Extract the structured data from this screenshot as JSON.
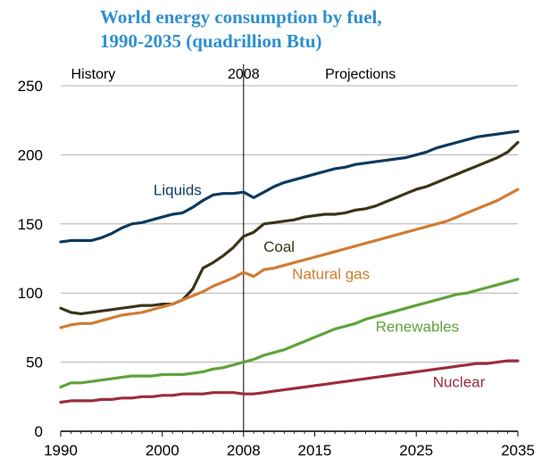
{
  "chart_data": {
    "type": "line",
    "title": "World energy consumption by fuel,",
    "subtitle": "1990-2035 (quadrillion Btu)",
    "xlabel": "",
    "ylabel": "",
    "xlim": [
      1990,
      2035
    ],
    "ylim": [
      0,
      250
    ],
    "x_ticks": [
      1990,
      2000,
      2008,
      2015,
      2025,
      2035
    ],
    "y_ticks": [
      0,
      50,
      100,
      150,
      200,
      250
    ],
    "divider_year": 2008,
    "annotations": {
      "history": "History",
      "divider": "2008",
      "projections": "Projections"
    },
    "x": [
      1990,
      1991,
      1992,
      1993,
      1994,
      1995,
      1996,
      1997,
      1998,
      1999,
      2000,
      2001,
      2002,
      2003,
      2004,
      2005,
      2006,
      2007,
      2008,
      2009,
      2010,
      2011,
      2012,
      2013,
      2014,
      2015,
      2016,
      2017,
      2018,
      2019,
      2020,
      2021,
      2022,
      2023,
      2024,
      2025,
      2026,
      2027,
      2028,
      2029,
      2030,
      2031,
      2032,
      2033,
      2034,
      2035
    ],
    "series": [
      {
        "name": "Liquids",
        "color": "#0c3a5e",
        "values": [
          137,
          138,
          138,
          138,
          140,
          143,
          147,
          150,
          151,
          153,
          155,
          157,
          158,
          162,
          167,
          171,
          172,
          172,
          173,
          169,
          173,
          177,
          180,
          182,
          184,
          186,
          188,
          190,
          191,
          193,
          194,
          195,
          196,
          197,
          198,
          200,
          202,
          205,
          207,
          209,
          211,
          213,
          214,
          215,
          216,
          217
        ]
      },
      {
        "name": "Coal",
        "color": "#3d3418",
        "values": [
          89,
          86,
          85,
          86,
          87,
          88,
          89,
          90,
          91,
          91,
          92,
          92,
          95,
          103,
          118,
          122,
          127,
          133,
          141,
          144,
          150,
          151,
          152,
          153,
          155,
          156,
          157,
          157,
          158,
          160,
          161,
          163,
          166,
          169,
          172,
          175,
          177,
          180,
          183,
          186,
          189,
          192,
          195,
          198,
          202,
          209
        ]
      },
      {
        "name": "Natural gas",
        "color": "#d07c32",
        "values": [
          75,
          77,
          78,
          78,
          80,
          82,
          84,
          85,
          86,
          88,
          90,
          92,
          95,
          98,
          101,
          105,
          108,
          111,
          115,
          112,
          117,
          118,
          120,
          122,
          124,
          126,
          128,
          130,
          132,
          134,
          136,
          138,
          140,
          142,
          144,
          146,
          148,
          150,
          152,
          155,
          158,
          161,
          164,
          167,
          171,
          175
        ]
      },
      {
        "name": "Renewables",
        "color": "#5fa33b",
        "values": [
          32,
          35,
          35,
          36,
          37,
          38,
          39,
          40,
          40,
          40,
          41,
          41,
          41,
          42,
          43,
          45,
          46,
          48,
          50,
          52,
          55,
          57,
          59,
          62,
          65,
          68,
          71,
          74,
          76,
          78,
          81,
          83,
          85,
          87,
          89,
          91,
          93,
          95,
          97,
          99,
          100,
          102,
          104,
          106,
          108,
          110
        ]
      },
      {
        "name": "Nuclear",
        "color": "#9b2d3c",
        "values": [
          21,
          22,
          22,
          22,
          23,
          23,
          24,
          24,
          25,
          25,
          26,
          26,
          27,
          27,
          27,
          28,
          28,
          28,
          27,
          27,
          28,
          29,
          30,
          31,
          32,
          33,
          34,
          35,
          36,
          37,
          38,
          39,
          40,
          41,
          42,
          43,
          44,
          45,
          46,
          47,
          48,
          49,
          49,
          50,
          51,
          51
        ]
      }
    ],
    "legend": "inline labels"
  }
}
